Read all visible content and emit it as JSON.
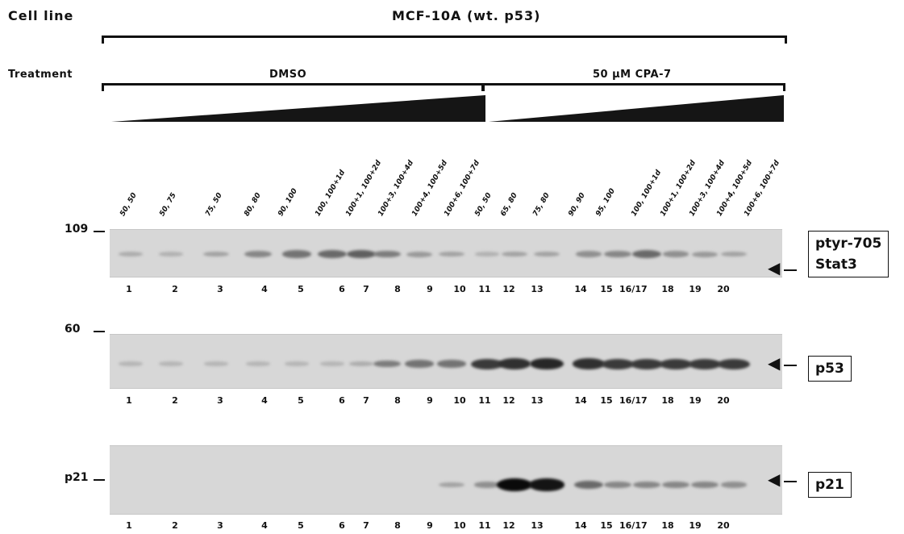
{
  "header": {
    "cell_line_label": "Cell line",
    "cell_line_value": "MCF-10A  (wt. p53)",
    "treatment_label": "Treatment",
    "dmso_label": "DMSO",
    "cpa_label": "50 μM CPA-7"
  },
  "lane_labels": [
    "50, 50",
    "50, 75",
    "75, 50",
    "80, 80",
    "90, 100",
    "100, 100+1d",
    "100+1, 100+2d",
    "100+3, 100+4d",
    "100+4, 100+5d",
    "100+6, 100+7d",
    "50, 50",
    "65, 80",
    "75, 80",
    "90, 90",
    "95, 100",
    "100, 100+1d",
    "100+1, 100+2d",
    "100+3, 100+4d",
    "100+4, 100+5d",
    "100+6, 100+7d"
  ],
  "panels": [
    {
      "marker": "109",
      "protein": [
        "ptyr-705",
        "Stat3"
      ],
      "lane_numbers": [
        "1",
        "2",
        "3",
        "4",
        "5",
        "6",
        "7",
        "8",
        "9",
        "10",
        "11",
        "12",
        "13",
        "14",
        "15",
        "16/17",
        "18",
        "19",
        "20"
      ],
      "band_intensity": [
        0.15,
        0.12,
        0.2,
        0.35,
        0.45,
        0.5,
        0.55,
        0.4,
        0.25,
        0.2,
        0.12,
        0.2,
        0.2,
        0.3,
        0.35,
        0.5,
        0.3,
        0.25,
        0.2
      ]
    },
    {
      "marker": "60",
      "protein": [
        "p53"
      ],
      "lane_numbers": [
        "1",
        "2",
        "3",
        "4",
        "5",
        "6",
        "7",
        "8",
        "9",
        "10",
        "11",
        "12",
        "13",
        "14",
        "15",
        "16/17",
        "18",
        "19",
        "20"
      ],
      "band_intensity": [
        0.1,
        0.1,
        0.1,
        0.1,
        0.1,
        0.1,
        0.15,
        0.4,
        0.45,
        0.45,
        0.75,
        0.8,
        0.85,
        0.8,
        0.75,
        0.75,
        0.75,
        0.75,
        0.75
      ]
    },
    {
      "marker": "p21",
      "protein": [
        "p21"
      ],
      "lane_numbers": [
        "1",
        "2",
        "3",
        "4",
        "5",
        "6",
        "7",
        "8",
        "9",
        "10",
        "11",
        "12",
        "13",
        "14",
        "15",
        "16/17",
        "18",
        "19",
        "20"
      ],
      "band_intensity": [
        0,
        0,
        0,
        0,
        0,
        0,
        0,
        0,
        0,
        0.2,
        0.3,
        1.0,
        0.95,
        0.5,
        0.35,
        0.35,
        0.35,
        0.35,
        0.3
      ]
    }
  ]
}
